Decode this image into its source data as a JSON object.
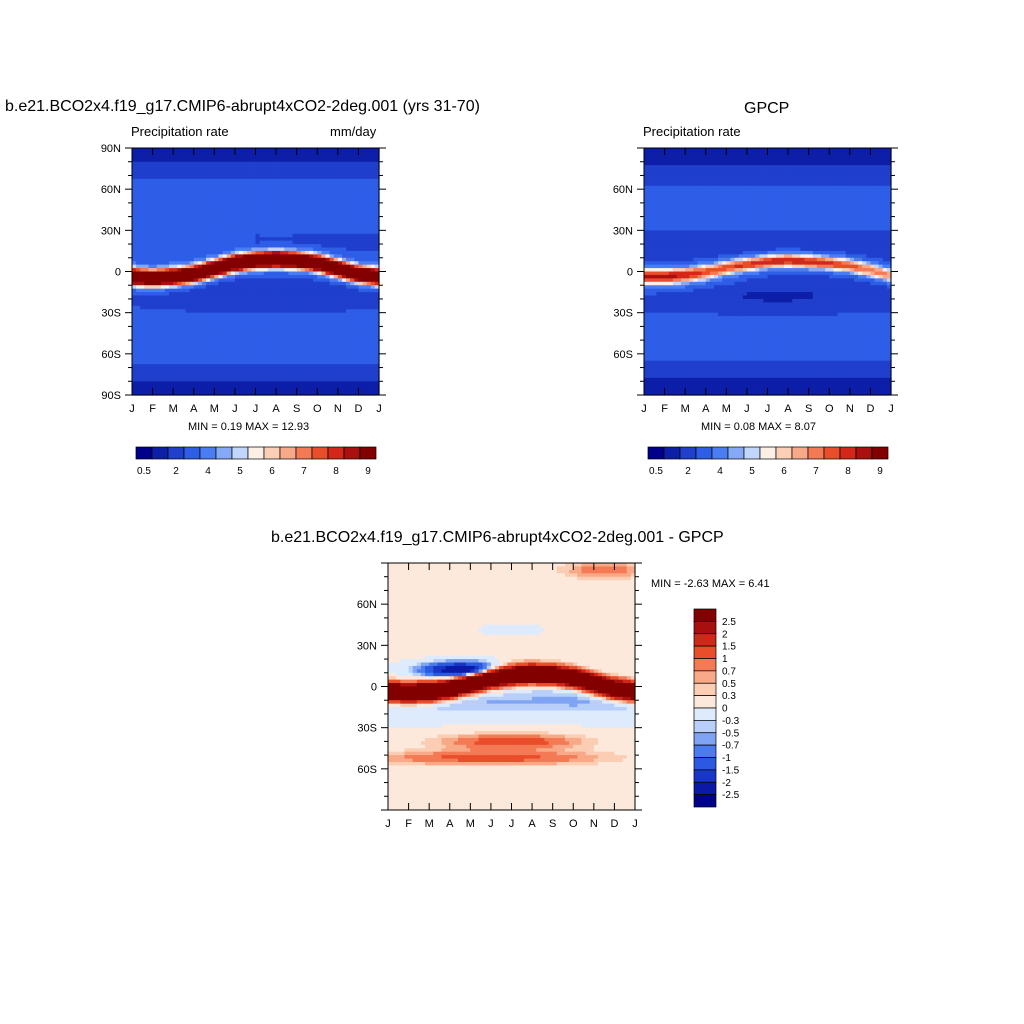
{
  "colors": {
    "abs_scale": [
      "#00008b",
      "#0d1ea8",
      "#1f3fcc",
      "#2e5ee8",
      "#4a7df4",
      "#86a9f6",
      "#c2d6fb",
      "#fbf0e6",
      "#fbcfb5",
      "#f8a989",
      "#f47a55",
      "#ea4d2a",
      "#d4271a",
      "#ab1010",
      "#830000"
    ],
    "diff_scale": [
      "#00008b",
      "#0a1aa6",
      "#1737c4",
      "#2c59e2",
      "#4a7cf0",
      "#7fa4f4",
      "#b8cff9",
      "#deebfc",
      "#fde8dc",
      "#fbcdb2",
      "#f8a987",
      "#f47a55",
      "#ea4d2a",
      "#cf2718",
      "#a80f0f",
      "#830000"
    ]
  },
  "month_labels": [
    "J",
    "F",
    "M",
    "A",
    "M",
    "J",
    "J",
    "A",
    "S",
    "O",
    "N",
    "D",
    "J"
  ],
  "panels": {
    "left": {
      "title": "b.e21.BCO2x4.f19_g17.CMIP6-abrupt4xCO2-2deg.001 (yrs 31-70)",
      "left_label": "Precipitation rate",
      "right_label": "mm/day",
      "min_max": "MIN =   0.19 MAX =  12.93",
      "lat_labels": [
        "90N",
        "60N",
        "30N",
        "0",
        "30S",
        "60S",
        "90S"
      ]
    },
    "right": {
      "title": "GPCP",
      "left_label": "Precipitation rate",
      "min_max": "MIN =   0.08 MAX =   8.07",
      "lat_labels": [
        "60N",
        "30N",
        "0",
        "30S",
        "60S"
      ]
    },
    "bottom": {
      "title": "b.e21.BCO2x4.f19_g17.CMIP6-abrupt4xCO2-2deg.001 - GPCP",
      "min_max": "MIN =  -2.63 MAX =   6.41",
      "lat_labels": [
        "60N",
        "30N",
        "0",
        "30S",
        "60S"
      ]
    }
  },
  "colorbar_abs": {
    "labels": [
      "0.5",
      "2",
      "4",
      "5",
      "6",
      "7",
      "8",
      "9"
    ]
  },
  "colorbar_diff": {
    "labels": [
      "2.5",
      "2",
      "1.5",
      "1",
      "0.7",
      "0.5",
      "0.3",
      "0",
      "-0.3",
      "-0.5",
      "-0.7",
      "-1",
      "-1.5",
      "-2",
      "-2.5"
    ]
  },
  "chart_data": [
    {
      "type": "heatmap",
      "title": "b.e21.BCO2x4.f19_g17.CMIP6-abrupt4xCO2-2deg.001 (yrs 31-70)",
      "subtitle": "Precipitation rate",
      "units": "mm/day",
      "x": [
        "J",
        "F",
        "M",
        "A",
        "M",
        "J",
        "J",
        "A",
        "S",
        "O",
        "N",
        "D",
        "J"
      ],
      "y_ticks": [
        "90N",
        "60N",
        "30N",
        "0",
        "30S",
        "60S",
        "90S"
      ],
      "ylim": [
        -90,
        90
      ],
      "min": 0.19,
      "max": 12.93,
      "colorbar_levels": [
        0.5,
        2,
        4,
        5,
        6,
        7,
        8,
        9
      ],
      "itcz_lat_by_month": [
        -4,
        -5,
        -4,
        -2,
        2,
        6,
        8,
        9,
        8,
        6,
        2,
        -2,
        -4
      ],
      "itcz_peak_mm_day": 12.9
    },
    {
      "type": "heatmap",
      "title": "GPCP",
      "subtitle": "Precipitation rate",
      "x": [
        "J",
        "F",
        "M",
        "A",
        "M",
        "J",
        "J",
        "A",
        "S",
        "O",
        "N",
        "D",
        "J"
      ],
      "y_ticks": [
        "60N",
        "30N",
        "0",
        "30S",
        "60S"
      ],
      "ylim": [
        -90,
        90
      ],
      "min": 0.08,
      "max": 8.07,
      "colorbar_levels": [
        0.5,
        2,
        4,
        5,
        6,
        7,
        8,
        9
      ],
      "itcz_lat_by_month": [
        -3,
        -3,
        -2,
        0,
        3,
        5,
        7,
        8,
        7,
        6,
        4,
        1,
        -3
      ],
      "itcz_peak_mm_day": 8.0
    },
    {
      "type": "heatmap",
      "title": "b.e21.BCO2x4.f19_g17.CMIP6-abrupt4xCO2-2deg.001 - GPCP",
      "x": [
        "J",
        "F",
        "M",
        "A",
        "M",
        "J",
        "J",
        "A",
        "S",
        "O",
        "N",
        "D",
        "J"
      ],
      "y_ticks": [
        "60N",
        "30N",
        "0",
        "30S",
        "60S"
      ],
      "ylim": [
        -90,
        90
      ],
      "min": -2.63,
      "max": 6.41,
      "colorbar_levels": [
        -2.5,
        -2,
        -1.5,
        -1,
        -0.7,
        -0.5,
        -0.3,
        0,
        0.3,
        0.5,
        0.7,
        1,
        1.5,
        2,
        2.5
      ],
      "positive_band_lat_by_month": [
        -4,
        -5,
        -4,
        -2,
        2,
        6,
        8,
        9,
        8,
        6,
        2,
        -2,
        -4
      ],
      "negative_band_center": {
        "month": "A",
        "lat": 12,
        "value": -2.6
      }
    }
  ]
}
